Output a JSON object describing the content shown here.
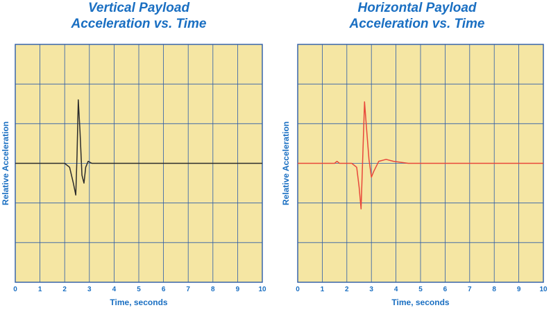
{
  "chart_data": [
    {
      "type": "line",
      "title_line1": "Vertical Payload",
      "title_line2": "Acceleration vs. Time",
      "xlabel": "Time, seconds",
      "ylabel": "Relative Acceleration",
      "xlim": [
        0,
        10
      ],
      "ylim": [
        -3,
        3
      ],
      "x_ticks": [
        "0",
        "1",
        "2",
        "3",
        "4",
        "5",
        "6",
        "7",
        "8",
        "9",
        "10"
      ],
      "grid": true,
      "colors": {
        "background": "#f5e6a3",
        "grid": "#2a5aa8",
        "line": "#2b2b2b"
      },
      "series": [
        {
          "x": [
            0,
            1,
            2,
            2.2,
            2.35,
            2.45,
            2.5,
            2.55,
            2.62,
            2.7,
            2.78,
            2.85,
            2.95,
            3.1,
            3.4,
            4,
            5,
            6,
            7,
            8,
            9,
            10
          ],
          "y": [
            0,
            0,
            0,
            -0.1,
            -0.5,
            -0.8,
            0.2,
            1.6,
            0.8,
            -0.3,
            -0.5,
            -0.1,
            0.05,
            0,
            0,
            0,
            0,
            0,
            0,
            0,
            0,
            0
          ]
        }
      ]
    },
    {
      "type": "line",
      "title_line1": "Horizontal Payload",
      "title_line2": "Acceleration vs. Time",
      "xlabel": "Time, seconds",
      "ylabel": "Relative Acceleration",
      "xlim": [
        0,
        10
      ],
      "ylim": [
        -3,
        3
      ],
      "x_ticks": [
        "0",
        "1",
        "2",
        "3",
        "4",
        "5",
        "6",
        "7",
        "8",
        "9",
        "10"
      ],
      "grid": true,
      "colors": {
        "background": "#f5e6a3",
        "grid": "#2a5aa8",
        "line": "#e8473a"
      },
      "series": [
        {
          "x": [
            0,
            1.5,
            1.6,
            1.7,
            2.2,
            2.4,
            2.5,
            2.58,
            2.65,
            2.72,
            2.8,
            2.9,
            3.0,
            3.1,
            3.3,
            3.6,
            3.9,
            4.5,
            5,
            6,
            7,
            8,
            9,
            10
          ],
          "y": [
            0,
            0,
            0.05,
            0,
            0,
            -0.1,
            -0.6,
            -1.15,
            0.2,
            1.55,
            0.9,
            0.1,
            -0.35,
            -0.2,
            0.05,
            0.1,
            0.05,
            0,
            0,
            0,
            0,
            0,
            0,
            0
          ]
        }
      ]
    }
  ]
}
